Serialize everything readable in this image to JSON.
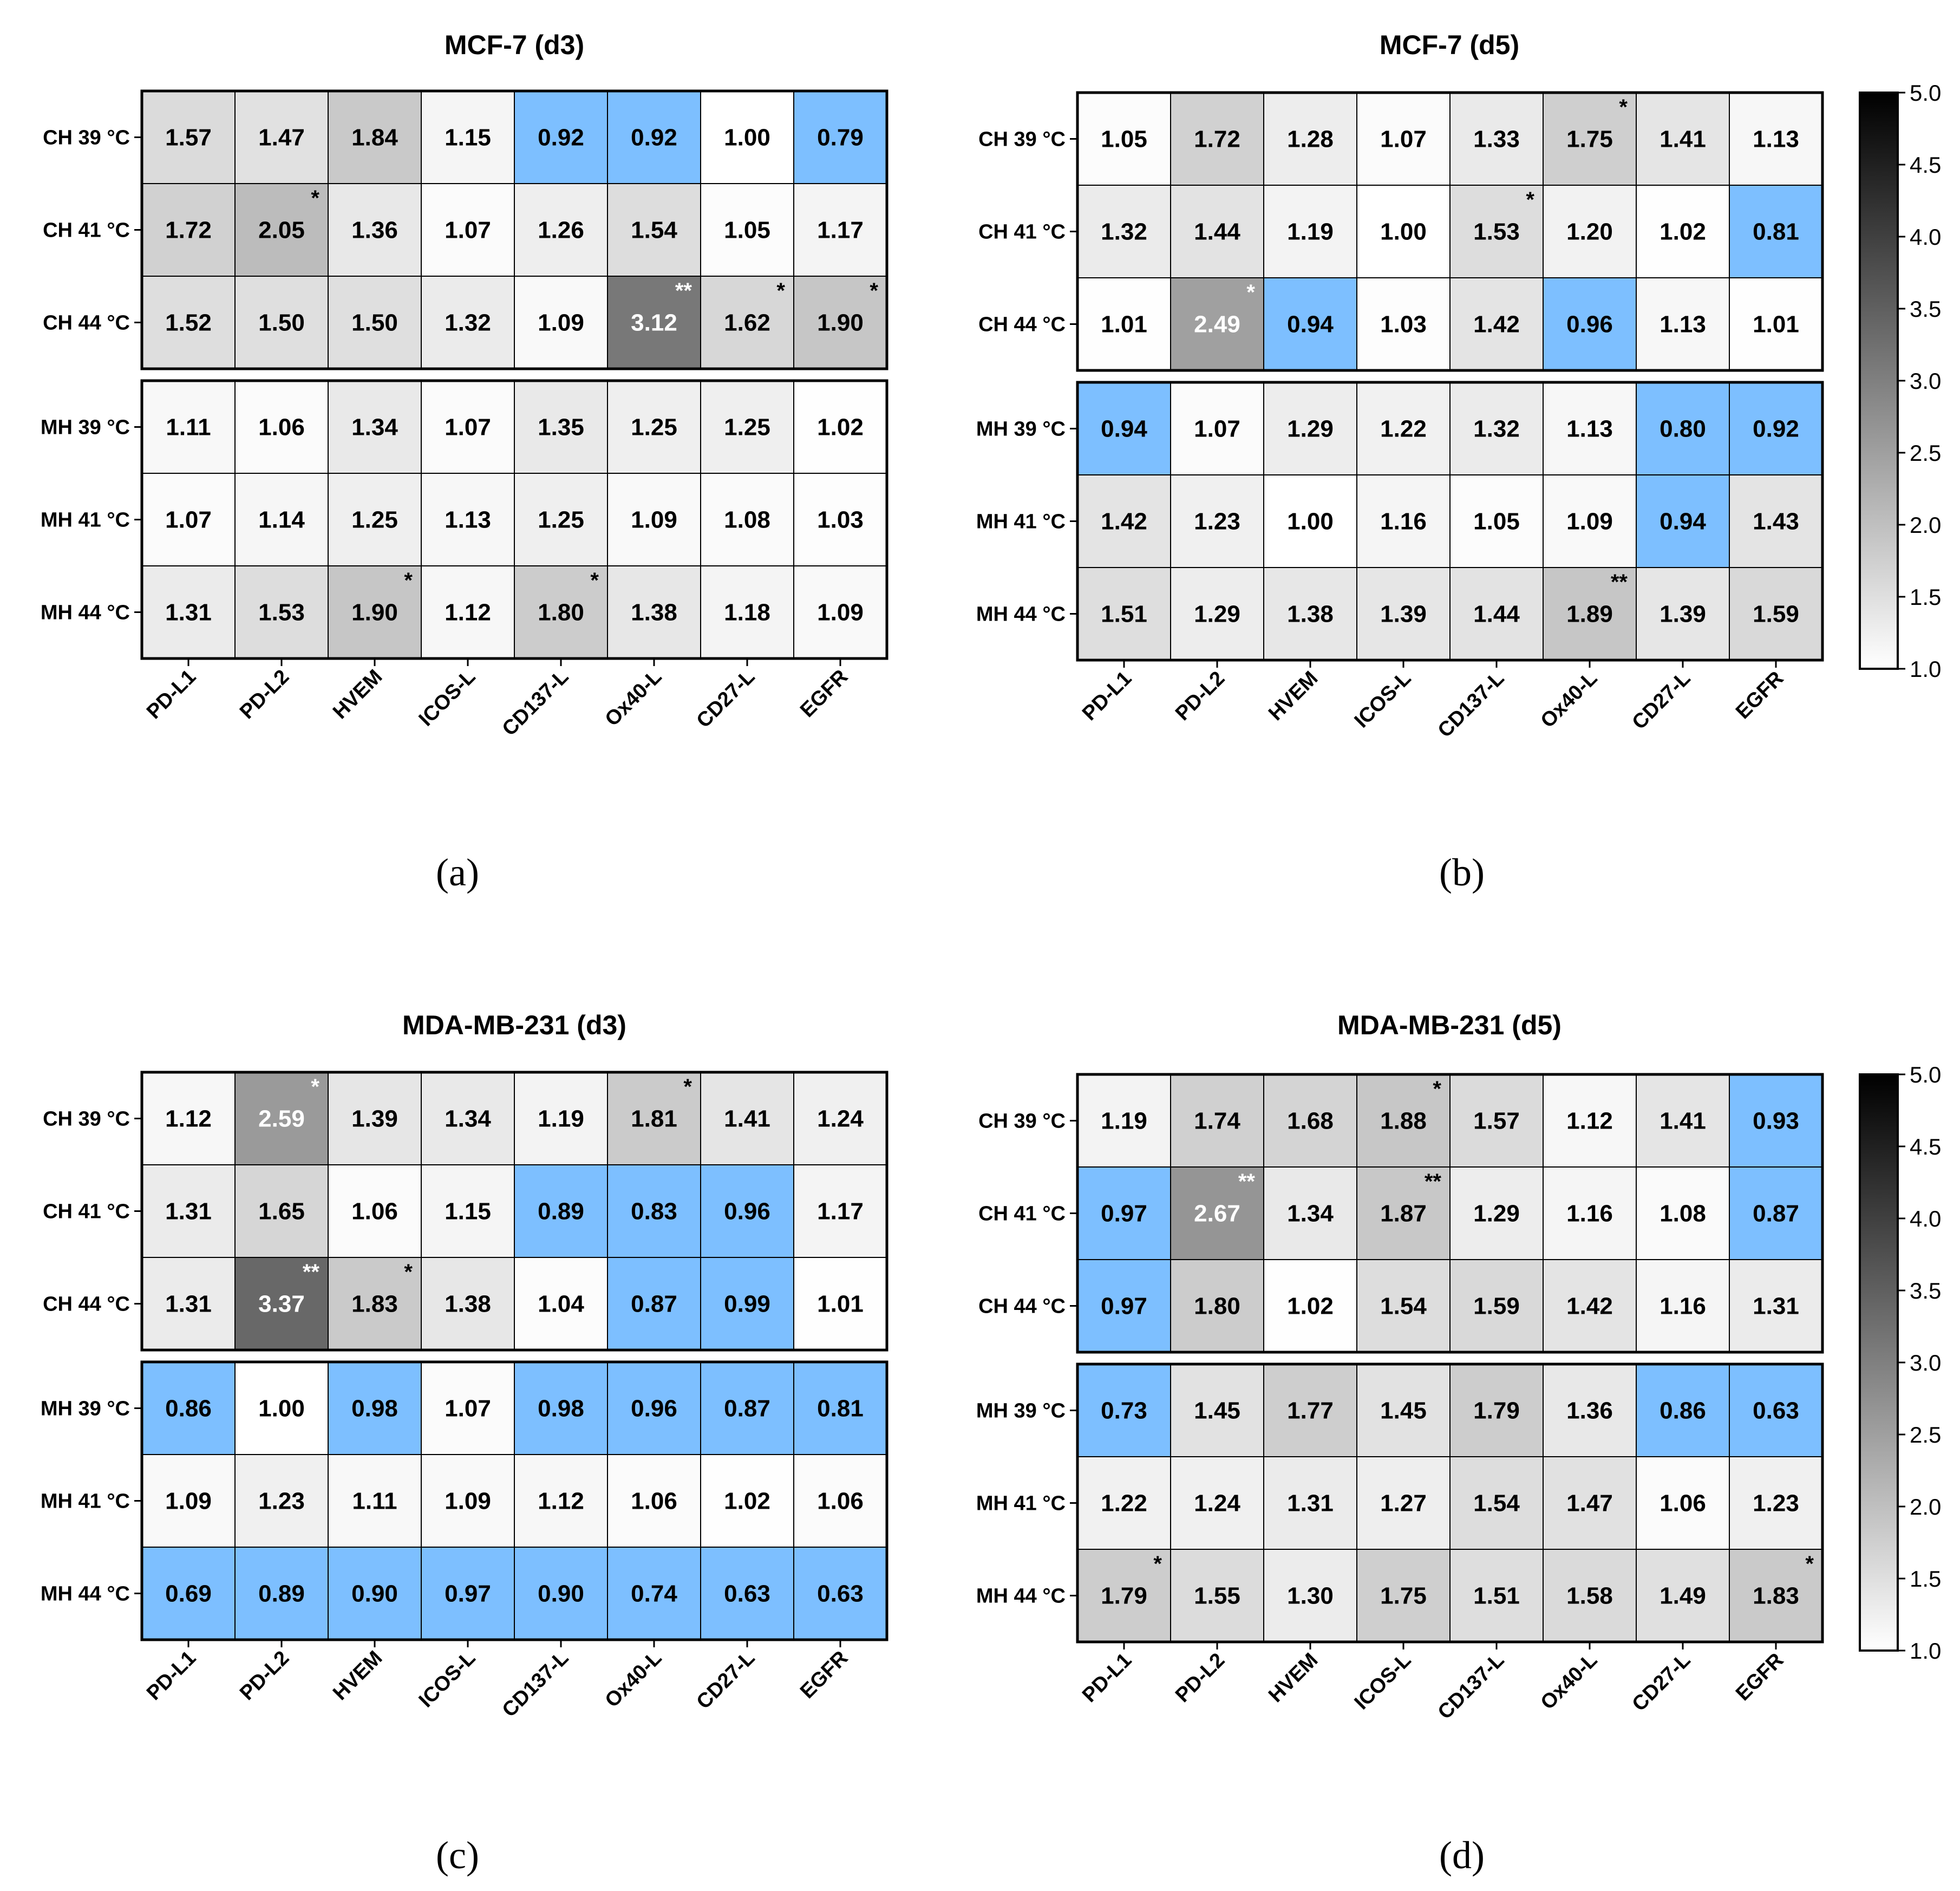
{
  "colors": {
    "below_one": "#7dbfff",
    "grid": "#000000",
    "text_dark": "#000000",
    "text_light": "#ffffff"
  },
  "chart_data": [
    {
      "type": "heatmap",
      "title": "MCF-7 (d3)",
      "panel_label": "(a)",
      "rows": [
        "CH 39 °C",
        "CH 41 °C",
        "CH 44 °C",
        "MH 39 °C",
        "MH 41 °C",
        "MH 44 °C"
      ],
      "columns": [
        "PD-L1",
        "PD-L2",
        "HVEM",
        "ICOS-L",
        "CD137-L",
        "Ox40-L",
        "CD27-L",
        "EGFR"
      ],
      "values": [
        [
          1.57,
          1.47,
          1.84,
          1.15,
          0.92,
          0.92,
          1.0,
          0.79
        ],
        [
          1.72,
          2.05,
          1.36,
          1.07,
          1.26,
          1.54,
          1.05,
          1.17
        ],
        [
          1.52,
          1.5,
          1.5,
          1.32,
          1.09,
          3.12,
          1.62,
          1.9
        ],
        [
          1.11,
          1.06,
          1.34,
          1.07,
          1.35,
          1.25,
          1.25,
          1.02
        ],
        [
          1.07,
          1.14,
          1.25,
          1.13,
          1.25,
          1.09,
          1.08,
          1.03
        ],
        [
          1.31,
          1.53,
          1.9,
          1.12,
          1.8,
          1.38,
          1.18,
          1.09
        ]
      ],
      "significance": [
        [
          "",
          "",
          "",
          "",
          "",
          "",
          "",
          ""
        ],
        [
          "",
          "*",
          "",
          "",
          "",
          "",
          "",
          ""
        ],
        [
          "",
          "",
          "",
          "",
          "",
          "**",
          "*",
          "*"
        ],
        [
          "",
          "",
          "",
          "",
          "",
          "",
          "",
          ""
        ],
        [
          "",
          "",
          "",
          "",
          "",
          "",
          "",
          ""
        ],
        [
          "",
          "",
          "*",
          "",
          "*",
          "",
          "",
          ""
        ]
      ],
      "colorbar": false
    },
    {
      "type": "heatmap",
      "title": "MCF-7 (d5)",
      "panel_label": "(b)",
      "rows": [
        "CH 39 °C",
        "CH 41 °C",
        "CH 44 °C",
        "MH 39 °C",
        "MH 41 °C",
        "MH 44 °C"
      ],
      "columns": [
        "PD-L1",
        "PD-L2",
        "HVEM",
        "ICOS-L",
        "CD137-L",
        "Ox40-L",
        "CD27-L",
        "EGFR"
      ],
      "values": [
        [
          1.05,
          1.72,
          1.28,
          1.07,
          1.33,
          1.75,
          1.41,
          1.13
        ],
        [
          1.32,
          1.44,
          1.19,
          1.0,
          1.53,
          1.2,
          1.02,
          0.81
        ],
        [
          1.01,
          2.49,
          0.94,
          1.03,
          1.42,
          0.96,
          1.13,
          1.01
        ],
        [
          0.94,
          1.07,
          1.29,
          1.22,
          1.32,
          1.13,
          0.8,
          0.92
        ],
        [
          1.42,
          1.23,
          1.0,
          1.16,
          1.05,
          1.09,
          0.94,
          1.43
        ],
        [
          1.51,
          1.29,
          1.38,
          1.39,
          1.44,
          1.89,
          1.39,
          1.59
        ]
      ],
      "significance": [
        [
          "",
          "",
          "",
          "",
          "",
          "*",
          "",
          ""
        ],
        [
          "",
          "",
          "",
          "",
          "*",
          "",
          "",
          ""
        ],
        [
          "",
          "*",
          "",
          "",
          "",
          "",
          "",
          ""
        ],
        [
          "",
          "",
          "",
          "",
          "",
          "",
          "",
          ""
        ],
        [
          "",
          "",
          "",
          "",
          "",
          "",
          "",
          ""
        ],
        [
          "",
          "",
          "",
          "",
          "",
          "**",
          "",
          ""
        ]
      ],
      "colorbar": true
    },
    {
      "type": "heatmap",
      "title": "MDA-MB-231 (d3)",
      "panel_label": "(c)",
      "rows": [
        "CH 39 °C",
        "CH 41 °C",
        "CH 44 °C",
        "MH 39 °C",
        "MH 41 °C",
        "MH 44 °C"
      ],
      "columns": [
        "PD-L1",
        "PD-L2",
        "HVEM",
        "ICOS-L",
        "CD137-L",
        "Ox40-L",
        "CD27-L",
        "EGFR"
      ],
      "values": [
        [
          1.12,
          2.59,
          1.39,
          1.34,
          1.19,
          1.81,
          1.41,
          1.24
        ],
        [
          1.31,
          1.65,
          1.06,
          1.15,
          0.89,
          0.83,
          0.96,
          1.17
        ],
        [
          1.31,
          3.37,
          1.83,
          1.38,
          1.04,
          0.87,
          0.99,
          1.01
        ],
        [
          0.86,
          1.0,
          0.98,
          1.07,
          0.98,
          0.96,
          0.87,
          0.81
        ],
        [
          1.09,
          1.23,
          1.11,
          1.09,
          1.12,
          1.06,
          1.02,
          1.06
        ],
        [
          0.69,
          0.89,
          0.9,
          0.97,
          0.9,
          0.74,
          0.63,
          0.63
        ]
      ],
      "significance": [
        [
          "",
          "*",
          "",
          "",
          "",
          "*",
          "",
          ""
        ],
        [
          "",
          "",
          "",
          "",
          "",
          "",
          "",
          ""
        ],
        [
          "",
          "**",
          "*",
          "",
          "",
          "",
          "",
          ""
        ],
        [
          "",
          "",
          "",
          "",
          "",
          "",
          "",
          ""
        ],
        [
          "",
          "",
          "",
          "",
          "",
          "",
          "",
          ""
        ],
        [
          "",
          "",
          "",
          "",
          "",
          "",
          "",
          ""
        ]
      ],
      "colorbar": false
    },
    {
      "type": "heatmap",
      "title": "MDA-MB-231 (d5)",
      "panel_label": "(d)",
      "rows": [
        "CH 39 °C",
        "CH 41 °C",
        "CH 44 °C",
        "MH 39 °C",
        "MH 41 °C",
        "MH 44 °C"
      ],
      "columns": [
        "PD-L1",
        "PD-L2",
        "HVEM",
        "ICOS-L",
        "CD137-L",
        "Ox40-L",
        "CD27-L",
        "EGFR"
      ],
      "values": [
        [
          1.19,
          1.74,
          1.68,
          1.88,
          1.57,
          1.12,
          1.41,
          0.93
        ],
        [
          0.97,
          2.67,
          1.34,
          1.87,
          1.29,
          1.16,
          1.08,
          0.87
        ],
        [
          0.97,
          1.8,
          1.02,
          1.54,
          1.59,
          1.42,
          1.16,
          1.31
        ],
        [
          0.73,
          1.45,
          1.77,
          1.45,
          1.79,
          1.36,
          0.86,
          0.63
        ],
        [
          1.22,
          1.24,
          1.31,
          1.27,
          1.54,
          1.47,
          1.06,
          1.23
        ],
        [
          1.79,
          1.55,
          1.3,
          1.75,
          1.51,
          1.58,
          1.49,
          1.83
        ]
      ],
      "significance": [
        [
          "",
          "",
          "",
          "*",
          "",
          "",
          "",
          ""
        ],
        [
          "",
          "**",
          "",
          "**",
          "",
          "",
          "",
          ""
        ],
        [
          "",
          "",
          "",
          "",
          "",
          "",
          "",
          ""
        ],
        [
          "",
          "",
          "",
          "",
          "",
          "",
          "",
          ""
        ],
        [
          "",
          "",
          "",
          "",
          "",
          "",
          "",
          ""
        ],
        [
          "*",
          "",
          "",
          "",
          "",
          "",
          "",
          "*"
        ]
      ],
      "colorbar": true
    }
  ],
  "colorbar": {
    "range": [
      1.0,
      5.0
    ],
    "ticks": [
      "1.0",
      "1.5",
      "2.0",
      "2.5",
      "3.0",
      "3.5",
      "4.0",
      "4.5",
      "5.0"
    ],
    "tick_values": [
      1.0,
      1.5,
      2.0,
      2.5,
      3.0,
      3.5,
      4.0,
      4.5,
      5.0
    ]
  }
}
